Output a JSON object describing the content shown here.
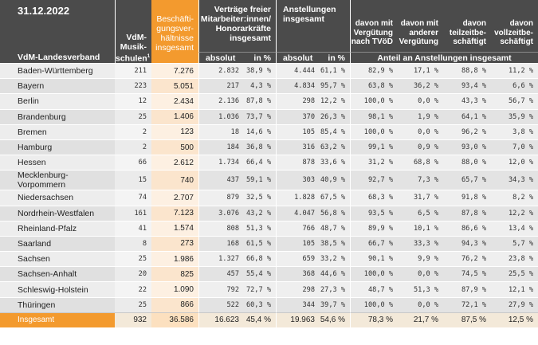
{
  "header": {
    "date": "31.12.2022",
    "landesverband_label": "VdM-Landesverband",
    "musikschulen_label_1": "VdM-",
    "musikschulen_label_2": "Musik-",
    "musikschulen_label_3": "schulen",
    "musikschulen_sup": "1",
    "beschaeftigung_lines": [
      "Beschäfti-",
      "gungsver-",
      "hältnisse",
      "insgesamt"
    ],
    "vertraege_lines": [
      "Verträge freier",
      "Mitarbeiter:innen/",
      "Honorarkräfte",
      "insgesamt"
    ],
    "anstellungen_lines": [
      "Anstellungen",
      "insgesamt"
    ],
    "davon_tvoed_lines": [
      "davon mit",
      "Vergütung",
      "nach TVöD"
    ],
    "davon_andere_lines": [
      "davon mit",
      "anderer",
      "Vergütung"
    ],
    "davon_teilzeit_lines": [
      "davon",
      "teilzeitbe-",
      "schäftigt"
    ],
    "davon_vollzeit_lines": [
      "davon",
      "vollzeitbe-",
      "schäftigt"
    ],
    "unit_absolut_1": "absolut",
    "unit_inprozent_1": "in %",
    "unit_absolut_2": "absolut",
    "unit_inprozent_2": "in %",
    "anteil_label": "Anteil an Anstellungen insgesamt"
  },
  "accent_color": "#f39a2e",
  "header_color": "#4b4b4b",
  "rows": [
    [
      "Baden-Württemberg",
      "211",
      "7.276",
      "2.832",
      "38,9 %",
      "4.444",
      "61,1 %",
      "82,9 %",
      "17,1 %",
      "88,8 %",
      "11,2 %"
    ],
    [
      "Bayern",
      "223",
      "5.051",
      "217",
      "4,3 %",
      "4.834",
      "95,7 %",
      "63,8 %",
      "36,2 %",
      "93,4 %",
      "6,6 %"
    ],
    [
      "Berlin",
      "12",
      "2.434",
      "2.136",
      "87,8 %",
      "298",
      "12,2 %",
      "100,0 %",
      "0,0 %",
      "43,3 %",
      "56,7 %"
    ],
    [
      "Brandenburg",
      "25",
      "1.406",
      "1.036",
      "73,7 %",
      "370",
      "26,3 %",
      "98,1 %",
      "1,9 %",
      "64,1 %",
      "35,9 %"
    ],
    [
      "Bremen",
      "2",
      "123",
      "18",
      "14,6 %",
      "105",
      "85,4 %",
      "100,0 %",
      "0,0 %",
      "96,2 %",
      "3,8 %"
    ],
    [
      "Hamburg",
      "2",
      "500",
      "184",
      "36,8 %",
      "316",
      "63,2 %",
      "99,1 %",
      "0,9 %",
      "93,0 %",
      "7,0 %"
    ],
    [
      "Hessen",
      "66",
      "2.612",
      "1.734",
      "66,4 %",
      "878",
      "33,6 %",
      "31,2 %",
      "68,8 %",
      "88,0 %",
      "12,0 %"
    ],
    [
      "Mecklenburg-Vorpommern",
      "15",
      "740",
      "437",
      "59,1 %",
      "303",
      "40,9 %",
      "92,7 %",
      "7,3 %",
      "65,7 %",
      "34,3 %"
    ],
    [
      "Niedersachsen",
      "74",
      "2.707",
      "879",
      "32,5 %",
      "1.828",
      "67,5 %",
      "68,3 %",
      "31,7 %",
      "91,8 %",
      "8,2 %"
    ],
    [
      "Nordrhein-Westfalen",
      "161",
      "7.123",
      "3.076",
      "43,2 %",
      "4.047",
      "56,8 %",
      "93,5 %",
      "6,5 %",
      "87,8 %",
      "12,2 %"
    ],
    [
      "Rheinland-Pfalz",
      "41",
      "1.574",
      "808",
      "51,3 %",
      "766",
      "48,7 %",
      "89,9 %",
      "10,1 %",
      "86,6 %",
      "13,4 %"
    ],
    [
      "Saarland",
      "8",
      "273",
      "168",
      "61,5 %",
      "105",
      "38,5 %",
      "66,7 %",
      "33,3 %",
      "94,3 %",
      "5,7 %"
    ],
    [
      "Sachsen",
      "25",
      "1.986",
      "1.327",
      "66,8 %",
      "659",
      "33,2 %",
      "90,1 %",
      "9,9 %",
      "76,2 %",
      "23,8 %"
    ],
    [
      "Sachsen-Anhalt",
      "20",
      "825",
      "457",
      "55,4 %",
      "368",
      "44,6 %",
      "100,0 %",
      "0,0 %",
      "74,5 %",
      "25,5 %"
    ],
    [
      "Schleswig-Holstein",
      "22",
      "1.090",
      "792",
      "72,7 %",
      "298",
      "27,3 %",
      "48,7 %",
      "51,3 %",
      "87,9 %",
      "12,1 %"
    ],
    [
      "Thüringen",
      "25",
      "866",
      "522",
      "60,3 %",
      "344",
      "39,7 %",
      "100,0 %",
      "0,0 %",
      "72,1 %",
      "27,9 %"
    ]
  ],
  "total": [
    "Insgesamt",
    "932",
    "36.586",
    "16.623",
    "45,4 %",
    "19.963",
    "54,6 %",
    "78,3 %",
    "21,7 %",
    "87,5 %",
    "12,5 %"
  ]
}
